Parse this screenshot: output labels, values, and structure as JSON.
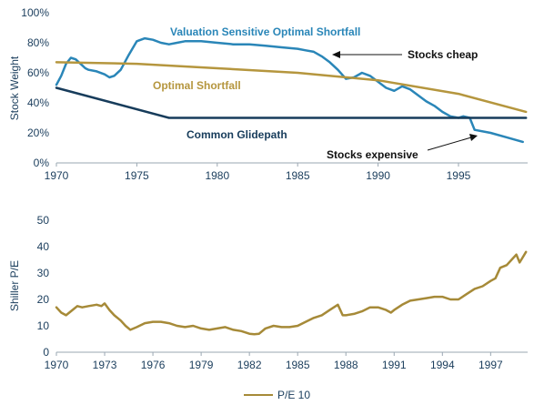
{
  "chart_data": [
    {
      "type": "line",
      "ylabel": "Stock Weight",
      "xlim": [
        1970,
        1999.3
      ],
      "ylim": [
        0,
        100
      ],
      "x_ticks": [
        1970,
        1975,
        1980,
        1985,
        1990,
        1995
      ],
      "x_tick_labels": [
        "1970",
        "1975",
        "1980",
        "1985",
        "1990",
        "1995"
      ],
      "y_ticks": [
        0,
        20,
        40,
        60,
        80,
        100
      ],
      "y_tick_labels": [
        "0%",
        "20%",
        "40%",
        "60%",
        "80%",
        "100%"
      ],
      "series": [
        {
          "name": "Valuation Sensitive Optimal Shortfall",
          "color": "#2a86b8",
          "x": [
            1970,
            1970.3,
            1970.6,
            1970.9,
            1971.2,
            1971.5,
            1971.8,
            1972.0,
            1972.5,
            1973.0,
            1973.3,
            1973.6,
            1974.0,
            1974.5,
            1975.0,
            1975.5,
            1976.0,
            1976.5,
            1977.0,
            1977.5,
            1978.0,
            1979.0,
            1980.0,
            1981.0,
            1982.0,
            1983.0,
            1984.0,
            1985.0,
            1985.5,
            1986.0,
            1986.5,
            1987.0,
            1987.5,
            1988.0,
            1988.5,
            1989.0,
            1989.5,
            1990.0,
            1990.5,
            1991.0,
            1991.5,
            1992.0,
            1993.0,
            1993.5,
            1994.0,
            1994.5,
            1995.0,
            1995.3,
            1995.7,
            1996.0,
            1997.0,
            1998.0,
            1999.0
          ],
          "values": [
            52,
            58,
            66,
            70,
            69,
            66,
            63,
            62,
            61,
            59,
            57,
            58,
            62,
            72,
            81,
            83,
            82,
            80,
            79,
            80,
            81,
            81,
            80,
            79,
            79,
            78,
            77,
            76,
            75,
            74,
            71,
            67,
            62,
            56,
            57,
            60,
            58,
            54,
            50,
            48,
            51,
            49,
            41,
            38,
            34,
            31,
            30,
            31,
            30,
            22,
            20,
            17,
            14
          ]
        },
        {
          "name": "Optimal Shortfall",
          "color": "#b5963e",
          "x": [
            1970,
            1975,
            1980,
            1985,
            1990,
            1995,
            1999.2
          ],
          "values": [
            67,
            66,
            63,
            60,
            55,
            46,
            34
          ]
        },
        {
          "name": "Common Glidepath",
          "color": "#173c5b",
          "x": [
            1970,
            1977,
            1999.2
          ],
          "values": [
            50,
            30,
            30
          ]
        }
      ],
      "annotations": [
        {
          "text": "Valuation Sensitive Optimal Shortfall",
          "color": "#2a86b8"
        },
        {
          "text": "Optimal Shortfall",
          "color": "#b5963e"
        },
        {
          "text": "Common Glidepath",
          "color": "#173c5b"
        },
        {
          "text": "Stocks cheap",
          "color": "#111111"
        },
        {
          "text": "Stocks expensive",
          "color": "#111111"
        }
      ]
    },
    {
      "type": "line",
      "ylabel": "Shiller P/E",
      "xlim": [
        1970,
        1999.3
      ],
      "ylim": [
        0,
        50
      ],
      "x_ticks": [
        1970,
        1973,
        1976,
        1979,
        1982,
        1985,
        1988,
        1991,
        1994,
        1997
      ],
      "x_tick_labels": [
        "1970",
        "1973",
        "1976",
        "1979",
        "1982",
        "1985",
        "1988",
        "1991",
        "1994",
        "1997"
      ],
      "y_ticks": [
        0,
        10,
        20,
        30,
        40,
        50
      ],
      "y_tick_labels": [
        "0",
        "10",
        "20",
        "30",
        "40",
        "50"
      ],
      "legend": {
        "position": "bottom",
        "label": "P/E 10"
      },
      "series": [
        {
          "name": "P/E 10",
          "color": "#a68a38",
          "x": [
            1970,
            1970.3,
            1970.6,
            1971.0,
            1971.3,
            1971.6,
            1972.0,
            1972.5,
            1972.8,
            1973.0,
            1973.3,
            1973.6,
            1974.0,
            1974.3,
            1974.6,
            1975.0,
            1975.5,
            1976.0,
            1976.5,
            1977.0,
            1977.5,
            1978.0,
            1978.5,
            1979.0,
            1979.5,
            1980.0,
            1980.5,
            1981.0,
            1981.5,
            1982.0,
            1982.3,
            1982.6,
            1983.0,
            1983.5,
            1984.0,
            1984.5,
            1985.0,
            1985.5,
            1986.0,
            1986.5,
            1987.0,
            1987.5,
            1987.8,
            1988.0,
            1988.5,
            1989.0,
            1989.5,
            1990.0,
            1990.5,
            1990.8,
            1991.0,
            1991.5,
            1992.0,
            1992.5,
            1993.0,
            1993.5,
            1994.0,
            1994.5,
            1995.0,
            1995.5,
            1996.0,
            1996.5,
            1997.0,
            1997.3,
            1997.6,
            1998.0,
            1998.3,
            1998.6,
            1998.8,
            1999.0,
            1999.2
          ],
          "values": [
            17,
            15,
            14,
            16,
            17.5,
            17,
            17.5,
            18,
            17.5,
            18.5,
            16,
            14,
            12,
            10,
            8.5,
            9.5,
            11,
            11.5,
            11.5,
            11,
            10,
            9.5,
            10,
            9,
            8.5,
            9,
            9.5,
            8.5,
            8,
            7,
            6.8,
            7,
            9,
            10,
            9.5,
            9.5,
            10,
            11.5,
            13,
            14,
            16,
            18,
            14,
            14,
            14.5,
            15.5,
            17,
            17,
            16,
            15,
            16,
            18,
            19.5,
            20,
            20.5,
            21,
            21,
            20,
            20,
            22,
            24,
            25,
            27,
            28,
            32,
            33,
            35,
            37,
            34,
            36,
            38
          ]
        }
      ]
    }
  ]
}
